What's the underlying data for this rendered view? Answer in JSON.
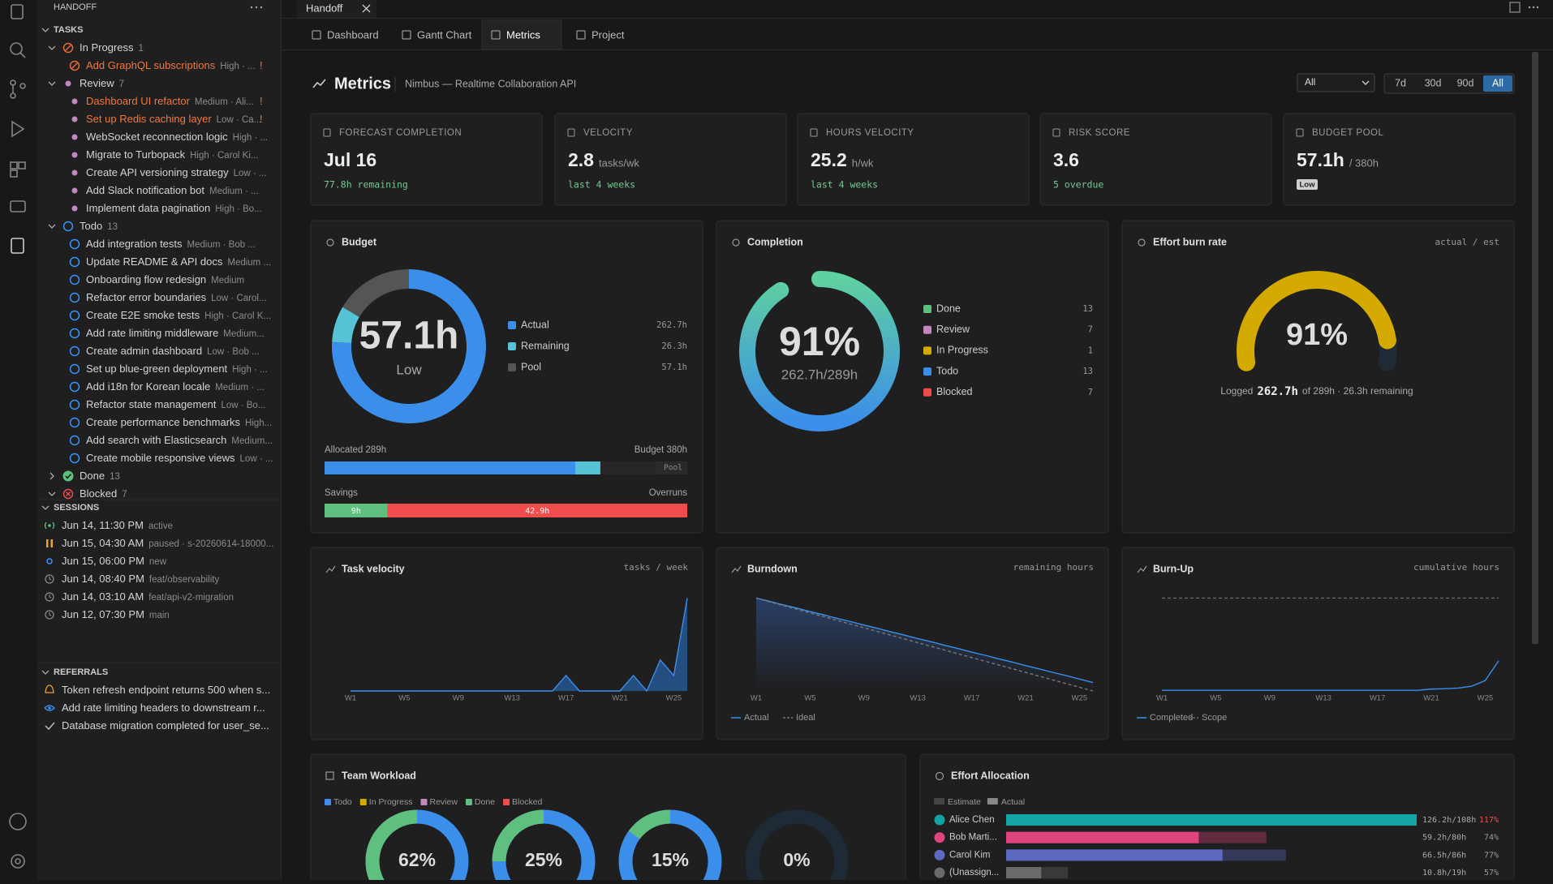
{
  "tab": "Handoff",
  "sidebar": {
    "title": "HANDOFF",
    "tasks_header": "TASKS",
    "groups": [
      {
        "name": "In Progress",
        "count": 1,
        "items": [
          {
            "title": "Add GraphQL subscriptions",
            "meta": "High · ...",
            "flag": "!"
          }
        ]
      },
      {
        "name": "Review",
        "count": 7,
        "items": [
          {
            "title": "Dashboard UI refactor",
            "meta": "Medium · Ali...",
            "flag": "!"
          },
          {
            "title": "Set up Redis caching layer",
            "meta": "Low · Ca...",
            "flag": "!"
          },
          {
            "title": "WebSocket reconnection logic",
            "meta": "High · ..."
          },
          {
            "title": "Migrate to Turbopack",
            "meta": "High · Carol Ki..."
          },
          {
            "title": "Create API versioning strategy",
            "meta": "Low · ..."
          },
          {
            "title": "Add Slack notification bot",
            "meta": "Medium · ..."
          },
          {
            "title": "Implement data pagination",
            "meta": "High · Bo..."
          }
        ]
      },
      {
        "name": "Todo",
        "count": 13,
        "items": [
          {
            "title": "Add integration tests",
            "meta": "Medium · Bob ..."
          },
          {
            "title": "Update README & API docs",
            "meta": "Medium ..."
          },
          {
            "title": "Onboarding flow redesign",
            "meta": "Medium"
          },
          {
            "title": "Refactor error boundaries",
            "meta": "Low · Carol..."
          },
          {
            "title": "Create E2E smoke tests",
            "meta": "High · Carol K..."
          },
          {
            "title": "Add rate limiting middleware",
            "meta": "Medium..."
          },
          {
            "title": "Create admin dashboard",
            "meta": "Low · Bob ..."
          },
          {
            "title": "Set up blue-green deployment",
            "meta": "High · ..."
          },
          {
            "title": "Add i18n for Korean locale",
            "meta": "Medium · ..."
          },
          {
            "title": "Refactor state management",
            "meta": "Low · Bo..."
          },
          {
            "title": "Create performance benchmarks",
            "meta": "High..."
          },
          {
            "title": "Add search with Elasticsearch",
            "meta": "Medium..."
          },
          {
            "title": "Create mobile responsive views",
            "meta": "Low · ..."
          }
        ]
      },
      {
        "name": "Done",
        "count": 13
      },
      {
        "name": "Blocked",
        "count": 7
      }
    ],
    "sessions_header": "SESSIONS",
    "sessions": [
      {
        "time": "Jun 14, 11:30 PM",
        "note": "active"
      },
      {
        "time": "Jun 15, 04:30 AM",
        "note": "paused · s-20260614-18000..."
      },
      {
        "time": "Jun 15, 06:00 PM",
        "note": "new"
      },
      {
        "time": "Jun 14, 08:40 PM",
        "note": "feat/observability"
      },
      {
        "time": "Jun 14, 03:10 AM",
        "note": "feat/api-v2-migration"
      },
      {
        "time": "Jun 12, 07:30 PM",
        "note": "main"
      }
    ],
    "referrals_header": "REFERRALS",
    "referrals": [
      "Token refresh endpoint returns 500 when s...",
      "Add rate limiting headers to downstream r...",
      "Database migration completed for user_se..."
    ]
  },
  "nav": [
    {
      "label": "Dashboard"
    },
    {
      "label": "Gantt Chart"
    },
    {
      "label": "Metrics",
      "active": true
    },
    {
      "label": "Project"
    }
  ],
  "header": {
    "title": "Metrics",
    "subtitle": "Nimbus — Realtime Collaboration API",
    "filter": "All",
    "ranges": [
      {
        "label": "7d"
      },
      {
        "label": "30d"
      },
      {
        "label": "90d"
      },
      {
        "label": "All",
        "active": true
      }
    ]
  },
  "kpis": [
    {
      "label": "FORECAST COMPLETION",
      "value": "Jul 16",
      "sub": "77.8h remaining"
    },
    {
      "label": "VELOCITY",
      "value": "2.8",
      "unit": "tasks/wk",
      "sub": "last 4 weeks"
    },
    {
      "label": "HOURS VELOCITY",
      "value": "25.2",
      "unit": "h/wk",
      "sub": "last 4 weeks"
    },
    {
      "label": "RISK SCORE",
      "value": "3.6",
      "sub": "5 overdue"
    },
    {
      "label": "BUDGET POOL",
      "value": "57.1h",
      "unit": "/ 380h",
      "badge": "Low"
    }
  ],
  "budget": {
    "title": "Budget",
    "center": "57.1h",
    "level": "Low",
    "segments": [
      {
        "name": "Actual",
        "hours": 262.7,
        "label": "262.7h",
        "color": "#3b8eea"
      },
      {
        "name": "Remaining",
        "hours": 26.3,
        "label": "26.3h",
        "color": "#56c2d6"
      },
      {
        "name": "Pool",
        "hours": 57.1,
        "label": "57.1h",
        "color": "#555555"
      }
    ],
    "allocated": "Allocated 289h",
    "budget": {
      "hours": 380,
      "label": "Budget 380h"
    },
    "pool_tag": "Pool",
    "savings": {
      "label": "Savings",
      "hours": 9,
      "value_label": "9h"
    },
    "overruns": {
      "label": "Overruns",
      "hours": 42.9,
      "value_label": "42.9h"
    }
  },
  "completion": {
    "title": "Completion",
    "percent": 91,
    "label": "91%",
    "sub": "262.7h/289h",
    "legend": [
      {
        "name": "Done",
        "count": 13,
        "color": "#5fbf7f"
      },
      {
        "name": "Review",
        "count": 7,
        "color": "#c586c0"
      },
      {
        "name": "In Progress",
        "count": 1,
        "color": "#d4a900"
      },
      {
        "name": "Todo",
        "count": 13,
        "color": "#3b8eea"
      },
      {
        "name": "Blocked",
        "count": 7,
        "color": "#f14c4c"
      }
    ]
  },
  "burn_rate": {
    "title": "Effort burn rate",
    "note": "actual / est",
    "percent": 91,
    "label": "91%",
    "logged_prefix": "Logged",
    "logged": "262.7h",
    "logged_suffix": "of 289h · 26.3h remaining",
    "color": "#d4a900"
  },
  "charts": [
    {
      "type": "area",
      "title": "Task velocity",
      "note": "tasks / week",
      "categories": [
        "W1",
        null,
        null,
        null,
        "W5",
        null,
        null,
        null,
        "W9",
        null,
        null,
        null,
        "W13",
        null,
        null,
        null,
        "W17",
        null,
        null,
        null,
        "W21",
        null,
        null,
        null,
        "W25",
        null
      ],
      "series": [
        {
          "values": [
            0,
            0,
            0,
            0,
            0,
            0,
            0,
            0,
            0,
            0,
            0,
            0,
            0,
            0,
            0,
            0,
            1,
            0,
            0,
            0,
            0,
            1,
            0,
            2,
            1,
            6
          ],
          "color": "#3b8eea"
        }
      ]
    },
    {
      "type": "line",
      "title": "Burndown",
      "note": "remaining hours",
      "categories": [
        "W1",
        null,
        null,
        null,
        "W5",
        null,
        null,
        null,
        "W9",
        null,
        null,
        null,
        "W13",
        null,
        null,
        null,
        "W17",
        null,
        null,
        null,
        "W21",
        null,
        null,
        null,
        "W25",
        null
      ],
      "series": [
        {
          "name": "Actual",
          "color": "#3b8eea",
          "values": [
            289,
            279,
            268,
            258,
            247,
            237,
            226,
            216,
            205,
            195,
            184,
            174,
            163,
            153,
            142,
            132,
            121,
            111,
            100,
            90,
            79,
            69,
            58,
            48,
            37,
            26.3
          ]
        },
        {
          "name": "Ideal",
          "color": "#777777",
          "dashed": true,
          "values": [
            289,
            277.4,
            265.9,
            254.3,
            242.8,
            231.2,
            219.6,
            208.1,
            196.5,
            185,
            173.4,
            161.8,
            150.3,
            138.7,
            127.2,
            115.6,
            104,
            92.5,
            80.9,
            69.4,
            57.8,
            46.2,
            34.7,
            23.1,
            11.6,
            0
          ]
        }
      ]
    },
    {
      "type": "line",
      "title": "Burn-Up",
      "note": "cumulative hours",
      "categories": [
        "W1",
        null,
        null,
        null,
        "W5",
        null,
        null,
        null,
        "W9",
        null,
        null,
        null,
        "W13",
        null,
        null,
        null,
        "W17",
        null,
        null,
        null,
        "W21",
        null,
        null,
        null,
        "W25",
        null
      ],
      "series": [
        {
          "name": "Completed",
          "color": "#3b8eea",
          "values": [
            2,
            2,
            2,
            2,
            2,
            2,
            2,
            2,
            2,
            2,
            2,
            2,
            2,
            2,
            2,
            2,
            2,
            2,
            2,
            2,
            6,
            7,
            9,
            15,
            32,
            94
          ]
        },
        {
          "name": "Scope",
          "color": "#666666",
          "dashed": true,
          "values": [
            289,
            289,
            289,
            289,
            289,
            289,
            289,
            289,
            289,
            289,
            289,
            289,
            289,
            289,
            289,
            289,
            289,
            289,
            289,
            289,
            289,
            289,
            289,
            289,
            289,
            289
          ]
        }
      ]
    }
  ],
  "workload": {
    "title": "Team Workload",
    "legend": [
      {
        "name": "Todo",
        "color": "#3b8eea"
      },
      {
        "name": "In Progress",
        "color": "#d4a900"
      },
      {
        "name": "Review",
        "color": "#c586c0"
      },
      {
        "name": "Done",
        "color": "#5fbf7f"
      },
      {
        "name": "Blocked",
        "color": "#f14c4c"
      }
    ],
    "people": [
      {
        "percent": 62,
        "label": "62%"
      },
      {
        "percent": 25,
        "label": "25%"
      },
      {
        "percent": 15,
        "label": "15%"
      },
      {
        "percent": 0,
        "label": "0%"
      }
    ]
  },
  "allocation": {
    "title": "Effort Allocation",
    "legend": [
      "Estimate",
      "Actual"
    ],
    "rows": [
      {
        "name": "Alice Chen",
        "actual": 126.2,
        "estimate": 108,
        "label": "126.2h/108h",
        "pct": "117%",
        "color": "#16a3a3"
      },
      {
        "name": "Bob Marti...",
        "actual": 59.2,
        "estimate": 80,
        "label": "59.2h/80h",
        "pct": "74%",
        "color": "#e0447f"
      },
      {
        "name": "Carol Kim",
        "actual": 66.5,
        "estimate": 86,
        "label": "66.5h/86h",
        "pct": "77%",
        "color": "#5c6bc0"
      },
      {
        "name": "(Unassign...",
        "actual": 10.8,
        "estimate": 19,
        "label": "10.8h/19h",
        "pct": "57%",
        "color": "#6b6b6b"
      }
    ]
  }
}
